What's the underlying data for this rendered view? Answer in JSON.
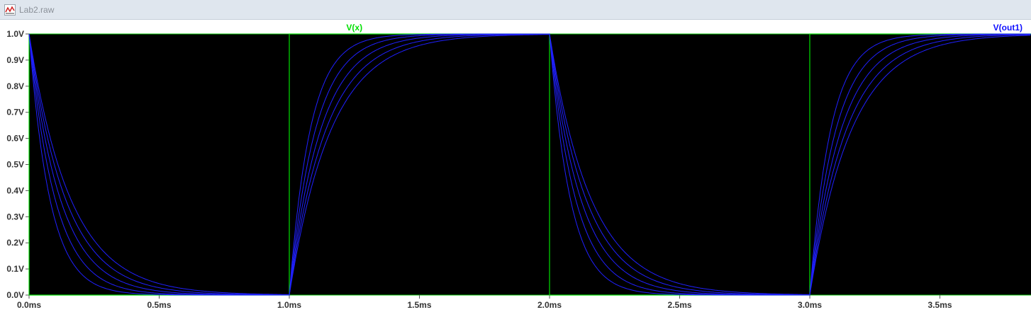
{
  "window": {
    "title": "Lab2.raw",
    "icon": "waveform-icon"
  },
  "colors": {
    "background": "#000000",
    "frame": "#00c000",
    "trace_vx": "#00e000",
    "trace_vout": "#2020ff",
    "vx_label": "#00e000",
    "vout_label": "#1010ff",
    "tick_text": "#333333"
  },
  "chart_data": {
    "type": "line",
    "xlim": [
      0,
      3.85
    ],
    "ylim": [
      0,
      1.0
    ],
    "x_ticks": [
      "0.0ms",
      "0.5ms",
      "1.0ms",
      "1.5ms",
      "2.0ms",
      "2.5ms",
      "3.0ms",
      "3.5ms"
    ],
    "x_tick_values": [
      0,
      0.5,
      1.0,
      1.5,
      2.0,
      2.5,
      3.0,
      3.5
    ],
    "y_ticks": [
      "0.0V",
      "0.1V",
      "0.2V",
      "0.3V",
      "0.4V",
      "0.5V",
      "0.6V",
      "0.7V",
      "0.8V",
      "0.9V",
      "1.0V"
    ],
    "y_tick_values": [
      0,
      0.1,
      0.2,
      0.3,
      0.4,
      0.5,
      0.6,
      0.7,
      0.8,
      0.9,
      1.0
    ],
    "grid": false,
    "series": [
      {
        "name": "V(x)",
        "kind": "square",
        "high": 1.0,
        "low": 0.0,
        "period": 2.0,
        "duty_high_end": 0.0
      },
      {
        "name": "V(out1)",
        "kind": "rc_step_family",
        "time_constants": [
          0.08,
          0.1,
          0.12,
          0.14,
          0.16
        ]
      }
    ]
  }
}
